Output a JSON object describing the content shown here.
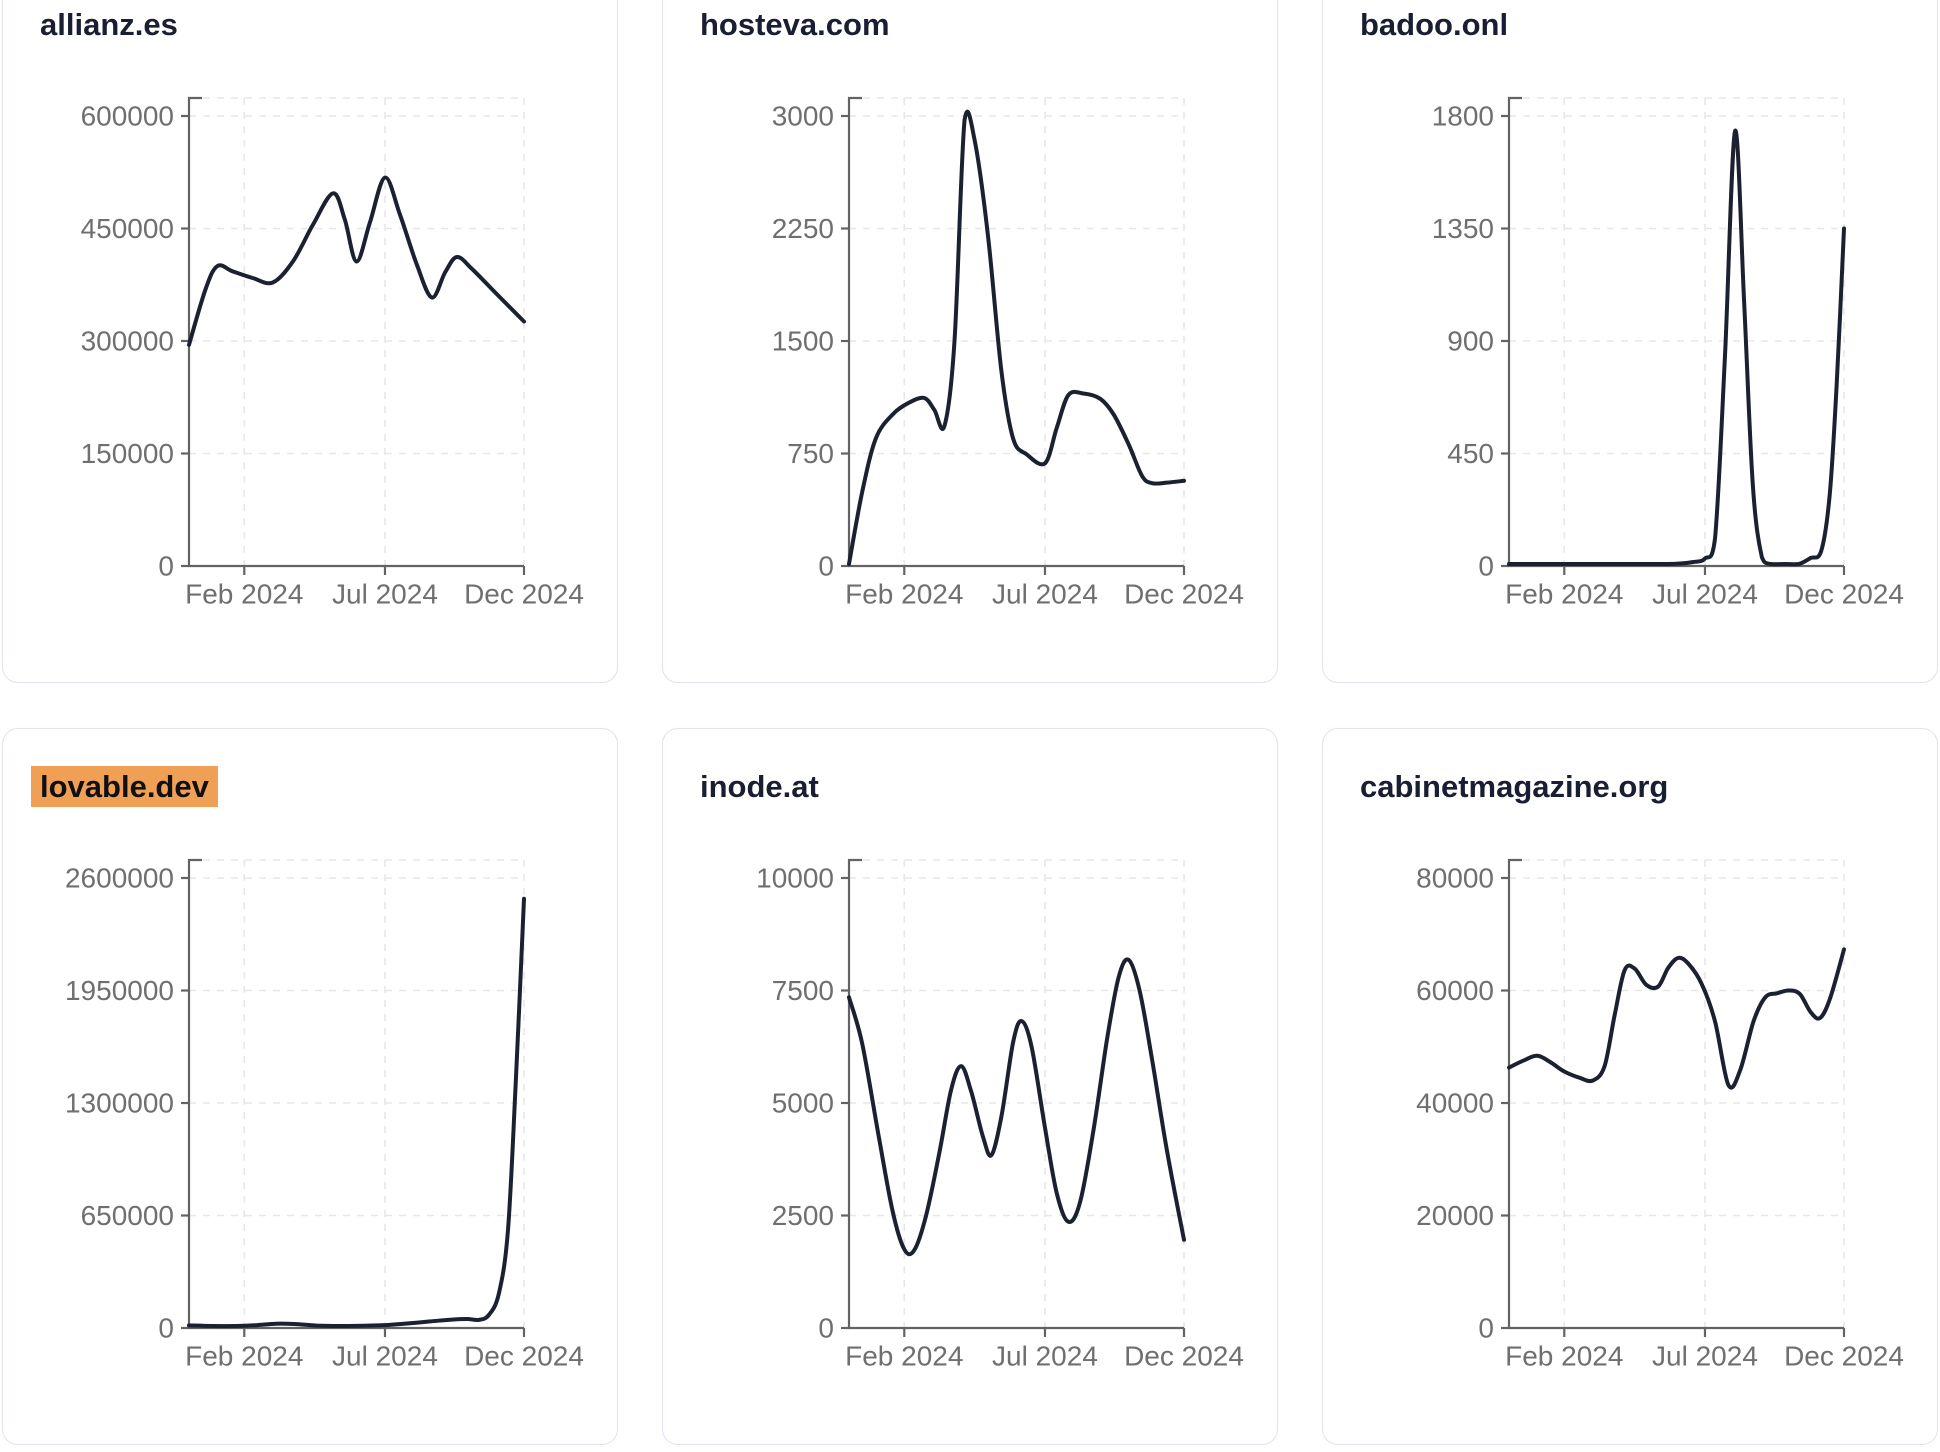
{
  "page": {
    "background": "#ffffff",
    "card_border_color": "#dfe3ef",
    "line_color": "#1c2132",
    "axis_color": "#636363",
    "grid_color": "#e7e7ea",
    "tick_label_color": "#6f6f6f",
    "title_color": "#1a1e33",
    "highlight_color": "#f0a055"
  },
  "chart_data": [
    {
      "type": "line",
      "title": "allianz.es",
      "highlighted": false,
      "grid": "dashed",
      "legend": "none",
      "y_ticks": [
        0,
        150000,
        300000,
        450000,
        600000
      ],
      "ylim": [
        0,
        600000
      ],
      "x_ticks": {
        "labels": [
          "Feb 2024",
          "Jul 2024",
          "Dec 2024"
        ],
        "fracs": [
          0.165,
          0.585,
          1.0
        ]
      },
      "points": [
        [
          0,
          295000
        ],
        [
          0.05,
          370000
        ],
        [
          0.085,
          400000
        ],
        [
          0.13,
          393000
        ],
        [
          0.19,
          384000
        ],
        [
          0.25,
          378000
        ],
        [
          0.31,
          406000
        ],
        [
          0.37,
          455000
        ],
        [
          0.43,
          497000
        ],
        [
          0.465,
          462000
        ],
        [
          0.5,
          406000
        ],
        [
          0.54,
          458000
        ],
        [
          0.585,
          518000
        ],
        [
          0.63,
          468000
        ],
        [
          0.68,
          402000
        ],
        [
          0.725,
          358000
        ],
        [
          0.765,
          392000
        ],
        [
          0.8,
          412000
        ],
        [
          0.845,
          396000
        ],
        [
          0.92,
          362000
        ],
        [
          1.0,
          326000
        ]
      ]
    },
    {
      "type": "line",
      "title": "hosteva.com",
      "highlighted": false,
      "grid": "dashed",
      "legend": "none",
      "y_ticks": [
        0,
        750,
        1500,
        2250,
        3000
      ],
      "ylim": [
        0,
        3000
      ],
      "x_ticks": {
        "labels": [
          "Feb 2024",
          "Jul 2024",
          "Dec 2024"
        ],
        "fracs": [
          0.165,
          0.585,
          1.0
        ]
      },
      "points": [
        [
          0,
          0
        ],
        [
          0.04,
          500
        ],
        [
          0.08,
          850
        ],
        [
          0.13,
          1010
        ],
        [
          0.18,
          1090
        ],
        [
          0.225,
          1120
        ],
        [
          0.255,
          1040
        ],
        [
          0.285,
          935
        ],
        [
          0.315,
          1500
        ],
        [
          0.345,
          2975
        ],
        [
          0.375,
          2840
        ],
        [
          0.415,
          2200
        ],
        [
          0.455,
          1300
        ],
        [
          0.49,
          850
        ],
        [
          0.53,
          745
        ],
        [
          0.585,
          685
        ],
        [
          0.62,
          920
        ],
        [
          0.655,
          1140
        ],
        [
          0.7,
          1150
        ],
        [
          0.75,
          1115
        ],
        [
          0.79,
          1010
        ],
        [
          0.835,
          810
        ],
        [
          0.875,
          600
        ],
        [
          0.905,
          552
        ],
        [
          0.95,
          556
        ],
        [
          1.0,
          568
        ]
      ]
    },
    {
      "type": "line",
      "title": "badoo.onl",
      "highlighted": false,
      "grid": "dashed",
      "legend": "none",
      "y_ticks": [
        0,
        450,
        900,
        1350,
        1800
      ],
      "ylim": [
        0,
        1800
      ],
      "x_ticks": {
        "labels": [
          "Feb 2024",
          "Jul 2024",
          "Dec 2024"
        ],
        "fracs": [
          0.165,
          0.585,
          1.0
        ]
      },
      "points": [
        [
          0,
          4
        ],
        [
          0.09,
          4
        ],
        [
          0.18,
          4
        ],
        [
          0.27,
          4
        ],
        [
          0.36,
          4
        ],
        [
          0.44,
          5
        ],
        [
          0.5,
          9
        ],
        [
          0.55,
          16
        ],
        [
          0.585,
          30
        ],
        [
          0.615,
          110
        ],
        [
          0.645,
          850
        ],
        [
          0.675,
          1740
        ],
        [
          0.702,
          1050
        ],
        [
          0.728,
          320
        ],
        [
          0.755,
          35
        ],
        [
          0.78,
          6
        ],
        [
          0.825,
          4
        ],
        [
          0.865,
          8
        ],
        [
          0.9,
          32
        ],
        [
          0.932,
          60
        ],
        [
          0.957,
          280
        ],
        [
          0.978,
          720
        ],
        [
          1.0,
          1350
        ]
      ]
    },
    {
      "type": "line",
      "title": "lovable.dev",
      "highlighted": true,
      "grid": "dashed",
      "legend": "none",
      "y_ticks": [
        0,
        650000,
        1300000,
        1950000,
        2600000
      ],
      "ylim": [
        0,
        2600000
      ],
      "x_ticks": {
        "labels": [
          "Feb 2024",
          "Jul 2024",
          "Dec 2024"
        ],
        "fracs": [
          0.165,
          0.585,
          1.0
        ]
      },
      "points": [
        [
          0,
          15000
        ],
        [
          0.07,
          11000
        ],
        [
          0.14,
          9000
        ],
        [
          0.2,
          16000
        ],
        [
          0.26,
          25000
        ],
        [
          0.315,
          23000
        ],
        [
          0.38,
          14000
        ],
        [
          0.45,
          11000
        ],
        [
          0.52,
          13000
        ],
        [
          0.585,
          17000
        ],
        [
          0.65,
          26000
        ],
        [
          0.72,
          38000
        ],
        [
          0.78,
          48000
        ],
        [
          0.83,
          52000
        ],
        [
          0.865,
          47000
        ],
        [
          0.895,
          75000
        ],
        [
          0.925,
          200000
        ],
        [
          0.952,
          560000
        ],
        [
          0.975,
          1400000
        ],
        [
          1.0,
          2480000
        ]
      ]
    },
    {
      "type": "line",
      "title": "inode.at",
      "highlighted": false,
      "grid": "dashed",
      "legend": "none",
      "y_ticks": [
        0,
        2500,
        5000,
        7500,
        10000
      ],
      "ylim": [
        0,
        10000
      ],
      "x_ticks": {
        "labels": [
          "Feb 2024",
          "Jul 2024",
          "Dec 2024"
        ],
        "fracs": [
          0.165,
          0.585,
          1.0
        ]
      },
      "points": [
        [
          0,
          7350
        ],
        [
          0.04,
          6300
        ],
        [
          0.09,
          4200
        ],
        [
          0.13,
          2600
        ],
        [
          0.165,
          1750
        ],
        [
          0.195,
          1730
        ],
        [
          0.23,
          2500
        ],
        [
          0.27,
          3900
        ],
        [
          0.305,
          5300
        ],
        [
          0.335,
          5820
        ],
        [
          0.365,
          5250
        ],
        [
          0.4,
          4250
        ],
        [
          0.425,
          3840
        ],
        [
          0.455,
          4700
        ],
        [
          0.49,
          6350
        ],
        [
          0.515,
          6820
        ],
        [
          0.545,
          6250
        ],
        [
          0.585,
          4450
        ],
        [
          0.62,
          3000
        ],
        [
          0.655,
          2360
        ],
        [
          0.69,
          2800
        ],
        [
          0.73,
          4400
        ],
        [
          0.77,
          6400
        ],
        [
          0.805,
          7800
        ],
        [
          0.835,
          8180
        ],
        [
          0.868,
          7480
        ],
        [
          0.905,
          5950
        ],
        [
          0.95,
          3900
        ],
        [
          1.0,
          1960
        ]
      ]
    },
    {
      "type": "line",
      "title": "cabinetmagazine.org",
      "highlighted": false,
      "grid": "dashed",
      "legend": "none",
      "y_ticks": [
        0,
        20000,
        40000,
        60000,
        80000
      ],
      "ylim": [
        0,
        80000
      ],
      "x_ticks": {
        "labels": [
          "Feb 2024",
          "Jul 2024",
          "Dec 2024"
        ],
        "fracs": [
          0.165,
          0.585,
          1.0
        ]
      },
      "points": [
        [
          0,
          46300
        ],
        [
          0.045,
          47600
        ],
        [
          0.085,
          48400
        ],
        [
          0.125,
          47200
        ],
        [
          0.165,
          45600
        ],
        [
          0.21,
          44500
        ],
        [
          0.25,
          44000
        ],
        [
          0.285,
          46500
        ],
        [
          0.315,
          55500
        ],
        [
          0.345,
          63600
        ],
        [
          0.375,
          63900
        ],
        [
          0.41,
          61000
        ],
        [
          0.445,
          60700
        ],
        [
          0.475,
          64000
        ],
        [
          0.505,
          65800
        ],
        [
          0.535,
          64800
        ],
        [
          0.575,
          61200
        ],
        [
          0.615,
          54500
        ],
        [
          0.655,
          43200
        ],
        [
          0.69,
          45800
        ],
        [
          0.73,
          54500
        ],
        [
          0.765,
          58800
        ],
        [
          0.8,
          59500
        ],
        [
          0.835,
          60000
        ],
        [
          0.868,
          59400
        ],
        [
          0.9,
          56200
        ],
        [
          0.928,
          55100
        ],
        [
          0.958,
          58500
        ],
        [
          1.0,
          67300
        ]
      ]
    }
  ]
}
